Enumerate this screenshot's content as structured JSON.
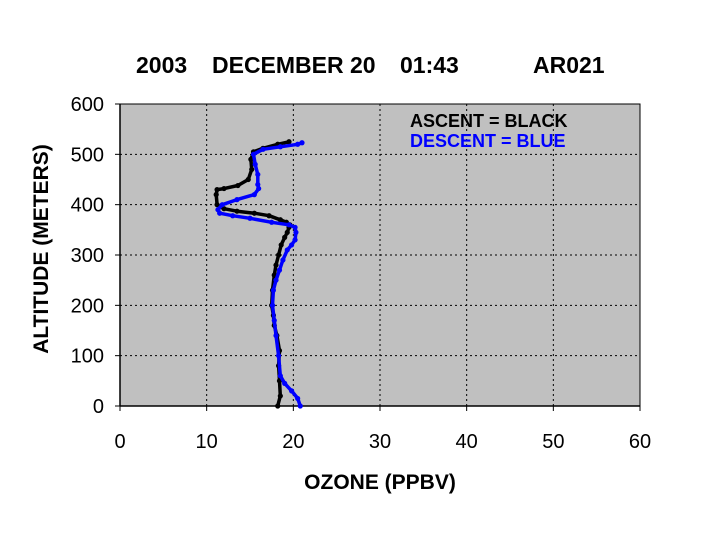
{
  "title_parts": {
    "year": "2003",
    "date": "DECEMBER 20",
    "time": "01:43",
    "id": "AR021"
  },
  "chart_data": {
    "type": "line",
    "xlabel": "OZONE (PPBV)",
    "ylabel": "ALTITUDE (METERS)",
    "xlim": [
      0,
      60
    ],
    "ylim": [
      0,
      600
    ],
    "xticks": [
      "0",
      "10",
      "20",
      "30",
      "40",
      "50",
      "60"
    ],
    "yticks": [
      "0",
      "100",
      "200",
      "300",
      "400",
      "500",
      "600"
    ],
    "grid": true,
    "background": "#c0c0c0",
    "legend": [
      {
        "label": "ASCENT   = BLACK",
        "color": "#000000"
      },
      {
        "label": "DESCENT = BLUE",
        "color": "#0000ff"
      }
    ],
    "series": [
      {
        "color": "#000000",
        "x": [
          18.2,
          18.5,
          18.4,
          18.3,
          18.4,
          18.1,
          17.8,
          17.7,
          17.5,
          17.6,
          17.8,
          18.0,
          18.3,
          18.6,
          19.0,
          19.3,
          19.5,
          19.6,
          19.2,
          18.5,
          17.2,
          15.5,
          13.5,
          12.0,
          11.2,
          11.1,
          11.2,
          12.0,
          13.6,
          14.8,
          15.2,
          15.1,
          15.4,
          16.5,
          18.2,
          19.5
        ],
        "y": [
          0,
          20,
          50,
          80,
          110,
          140,
          160,
          180,
          200,
          230,
          260,
          280,
          300,
          320,
          335,
          345,
          355,
          360,
          365,
          370,
          378,
          383,
          387,
          392,
          400,
          420,
          430,
          432,
          438,
          450,
          470,
          490,
          505,
          512,
          520,
          525
        ]
      },
      {
        "color": "#0000ff",
        "x": [
          20.8,
          20.5,
          19.8,
          19.0,
          18.5,
          18.3,
          18.0,
          17.8,
          17.6,
          17.7,
          18.0,
          18.4,
          18.8,
          19.3,
          19.8,
          20.2,
          20.3,
          20.2,
          19.5,
          17.5,
          15.0,
          13.0,
          11.5,
          11.3,
          11.8,
          13.5,
          15.5,
          16.0,
          15.9,
          15.9,
          15.6,
          15.4,
          16.5,
          18.5,
          20.5,
          21.0
        ],
        "y": [
          0,
          15,
          30,
          45,
          60,
          100,
          140,
          170,
          200,
          230,
          250,
          270,
          290,
          310,
          320,
          330,
          345,
          355,
          360,
          365,
          373,
          378,
          383,
          390,
          400,
          410,
          420,
          432,
          440,
          460,
          480,
          500,
          510,
          515,
          520,
          523
        ]
      }
    ]
  }
}
